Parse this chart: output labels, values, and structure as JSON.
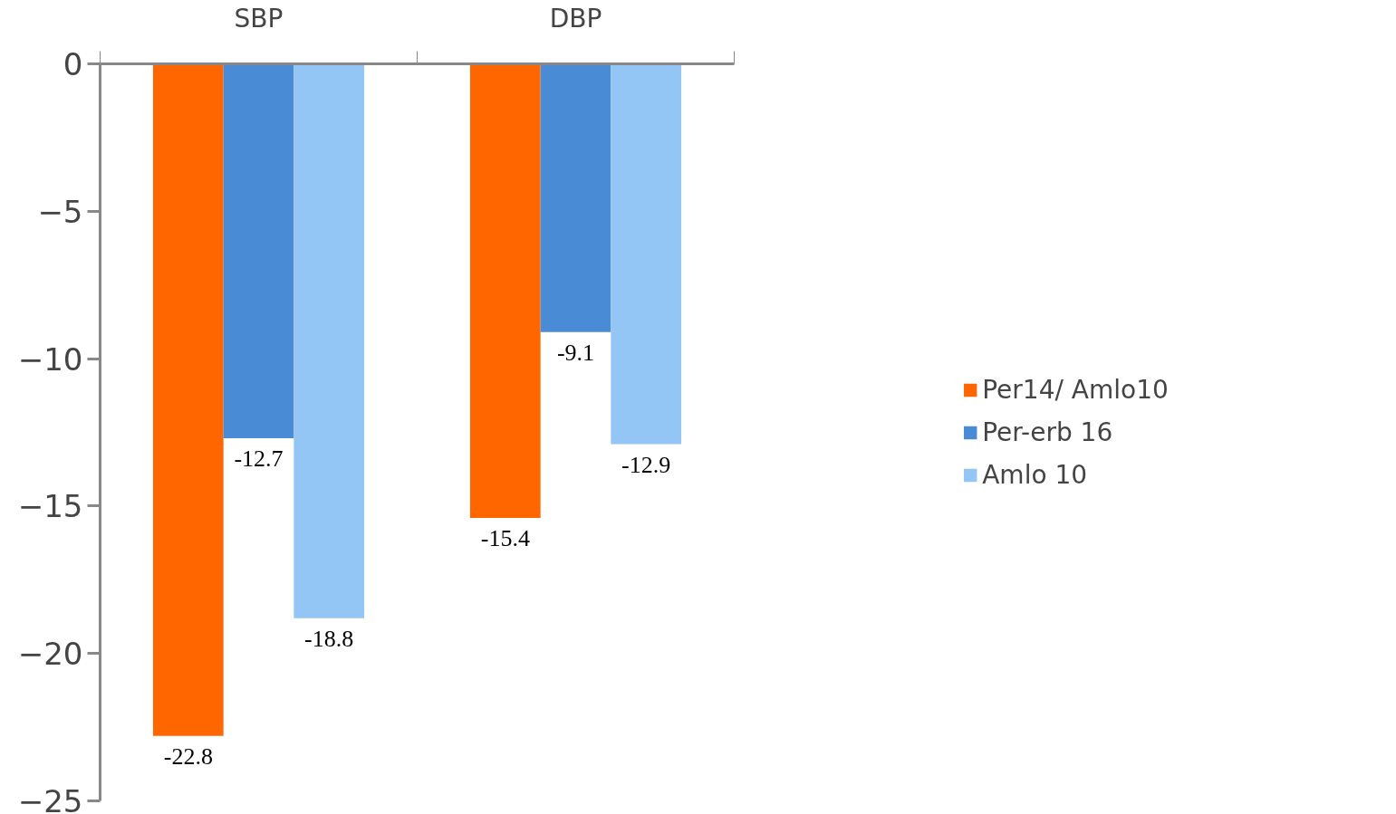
{
  "chart_data": {
    "type": "bar",
    "categories": [
      "SBP",
      "DBP"
    ],
    "series": [
      {
        "name": "Per14/ Amlo10",
        "color": "#ff6600",
        "values": [
          -22.8,
          -15.4
        ]
      },
      {
        "name": "Per-erb 16",
        "color": "#4a8bd6",
        "values": [
          -12.7,
          -9.1
        ]
      },
      {
        "name": "Amlo 10",
        "color": "#93c5f5",
        "values": [
          -18.8,
          -12.9
        ]
      }
    ],
    "ylim": [
      -25,
      0
    ],
    "yticks": [
      -25,
      -20,
      -15,
      -10,
      -5,
      0
    ],
    "data_labels": true,
    "legend": "right",
    "grid": false
  }
}
